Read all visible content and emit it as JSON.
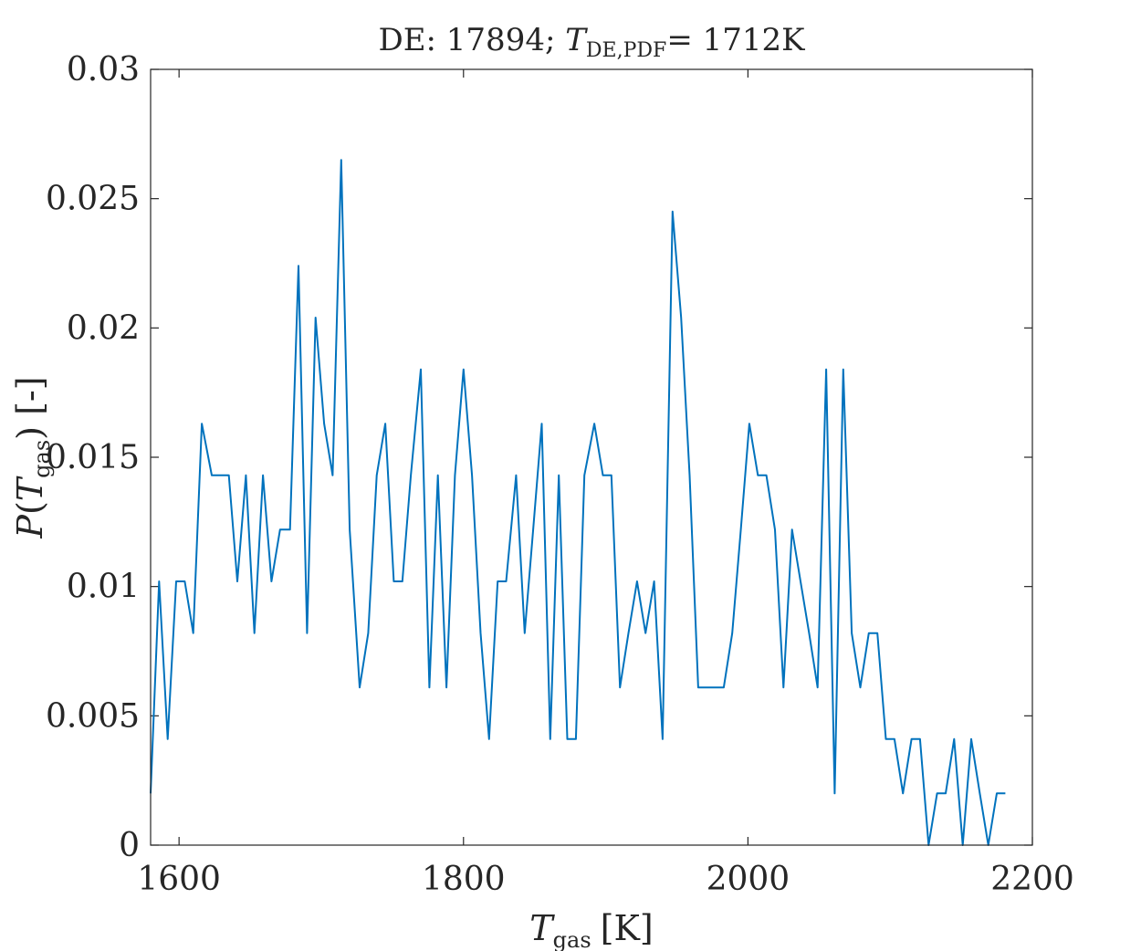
{
  "chart_data": {
    "type": "line",
    "title": "DE: 17894; T_DE,PDF= 1712K",
    "title_parts": {
      "prefix": "DE: 17894; ",
      "var": "T",
      "sub": "DE,PDF",
      "suffix": "= 1712K"
    },
    "xlabel_parts": {
      "var": "T",
      "sub": "gas",
      "unit": "[K]"
    },
    "ylabel_parts": {
      "pre": "P(",
      "var": "T",
      "sub": "gas",
      "post": ") [-]"
    },
    "xlim": [
      1580,
      2200
    ],
    "ylim": [
      0,
      0.03
    ],
    "xticks": [
      1600,
      1800,
      2000,
      2200
    ],
    "xtick_labels": [
      "1600",
      "1800",
      "2000",
      "2200"
    ],
    "yticks": [
      0,
      0.005,
      0.01,
      0.015,
      0.02,
      0.025,
      0.03
    ],
    "ytick_labels": [
      "0",
      "0.005",
      "0.01",
      "0.015",
      "0.02",
      "0.025",
      "0.03"
    ],
    "grid": false,
    "color": "#0072BD",
    "series": [
      {
        "x": [
          1580,
          1586,
          1592,
          1598,
          1604,
          1610,
          1616,
          1623,
          1629,
          1635,
          1641,
          1647,
          1653,
          1659,
          1665,
          1671,
          1678,
          1684,
          1690,
          1696,
          1702,
          1708,
          1714,
          1720,
          1727,
          1733,
          1739,
          1745,
          1751,
          1757,
          1763,
          1770,
          1776,
          1782,
          1788,
          1794,
          1800,
          1806,
          1812,
          1818,
          1824,
          1830,
          1837,
          1843,
          1849,
          1855,
          1861,
          1867,
          1873,
          1879,
          1885,
          1892,
          1898,
          1904,
          1910,
          1916,
          1922,
          1928,
          1934,
          1940,
          1947,
          1953,
          1959,
          1965,
          1971,
          1977,
          1983,
          1989,
          1995,
          2001,
          2007,
          2013,
          2019,
          2025,
          2031,
          2037,
          2043,
          2049,
          2055,
          2061,
          2067,
          2073,
          2079,
          2085,
          2091,
          2097,
          2103,
          2109,
          2115,
          2121,
          2127,
          2133,
          2139,
          2145,
          2151,
          2157,
          2163,
          2169,
          2175,
          2181
        ],
        "values": [
          0.002,
          0.0102,
          0.0041,
          0.0102,
          0.0102,
          0.0082,
          0.0163,
          0.0143,
          0.0143,
          0.0143,
          0.0102,
          0.0143,
          0.0082,
          0.0143,
          0.0102,
          0.0122,
          0.0122,
          0.0224,
          0.0082,
          0.0204,
          0.0163,
          0.0143,
          0.0265,
          0.0122,
          0.0061,
          0.0082,
          0.0143,
          0.0163,
          0.0102,
          0.0102,
          0.0143,
          0.0184,
          0.0061,
          0.0143,
          0.0061,
          0.0143,
          0.0184,
          0.0143,
          0.0082,
          0.0041,
          0.0102,
          0.0102,
          0.0143,
          0.0082,
          0.0122,
          0.0163,
          0.0041,
          0.0143,
          0.0041,
          0.0041,
          0.0143,
          0.0163,
          0.0143,
          0.0143,
          0.0061,
          0.0082,
          0.0102,
          0.0082,
          0.0102,
          0.0041,
          0.0245,
          0.0204,
          0.0143,
          0.0061,
          0.0061,
          0.0061,
          0.0061,
          0.0082,
          0.0122,
          0.0163,
          0.0143,
          0.0143,
          0.0122,
          0.0061,
          0.0122,
          0.0102,
          0.0082,
          0.0061,
          0.0184,
          0.002,
          0.0184,
          0.0082,
          0.0061,
          0.0082,
          0.0082,
          0.0041,
          0.0041,
          0.002,
          0.0041,
          0.0041,
          0.0,
          0.002,
          0.002,
          0.0041,
          0.0,
          0.0041,
          0.002,
          0.0,
          0.002,
          0.002
        ]
      }
    ]
  }
}
